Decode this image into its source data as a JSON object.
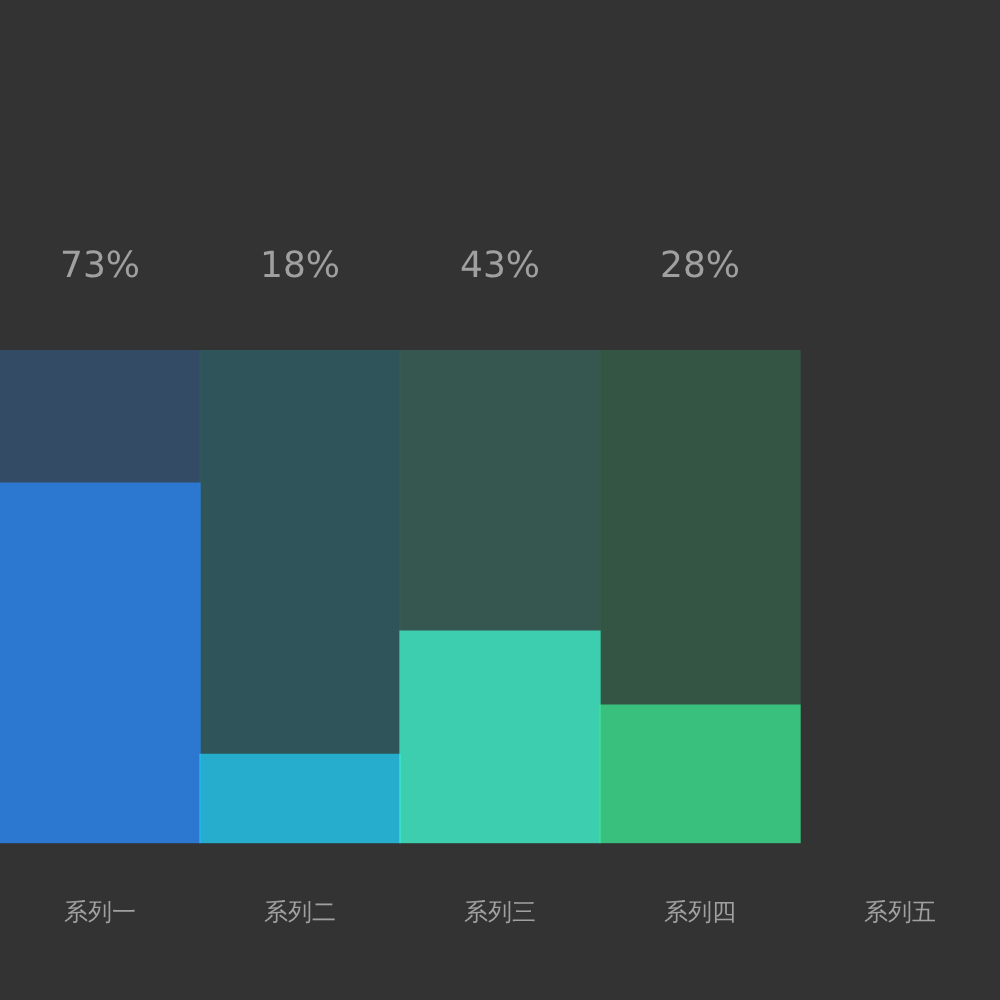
{
  "chart_data": {
    "type": "bar",
    "categories": [
      "系列一",
      "系列二",
      "系列三",
      "系列四",
      "系列五"
    ],
    "series": [
      {
        "values": [
          100,
          100,
          100,
          100,
          null
        ],
        "colors": [
          "#34506e",
          "#2f5a60",
          "#375e55",
          "#365c48",
          "#333333"
        ]
      },
      {
        "values": [
          73,
          18,
          43,
          28,
          null
        ],
        "colors": [
          "#2a8cff",
          "#22d3ff",
          "#40ffd8",
          "#3dee95",
          "#333333"
        ],
        "value_labels": [
          "73%",
          "18%",
          "43%",
          "28%",
          null
        ]
      }
    ],
    "ylim": [
      0,
      100
    ],
    "tick_labels": "x",
    "grid": false,
    "legend": false
  }
}
